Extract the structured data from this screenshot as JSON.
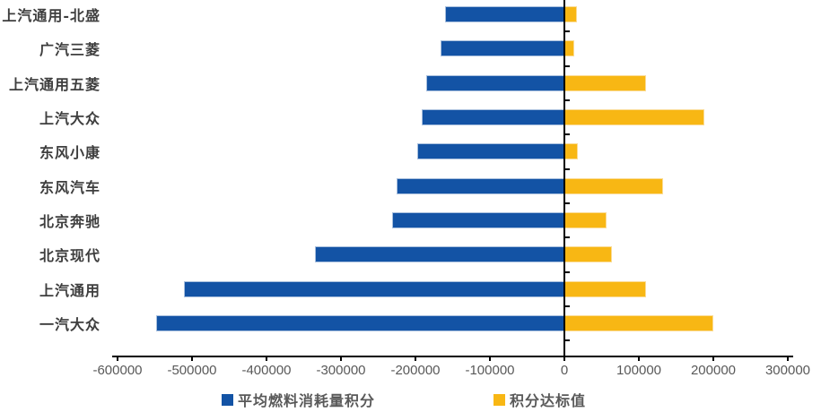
{
  "chart_data": {
    "type": "bar",
    "orientation": "horizontal-diverging",
    "title": "",
    "categories": [
      "上汽通用-北盛",
      "广汽三菱",
      "上汽通用五菱",
      "上汽大众",
      "东风小康",
      "东风汽车",
      "北京奔驰",
      "北京现代",
      "上汽通用",
      "一汽大众"
    ],
    "series": [
      {
        "name": "平均燃料消耗量积分",
        "color": "#1353A5",
        "values": [
          -160000,
          -166000,
          -185000,
          -192000,
          -197000,
          -225000,
          -231000,
          -335000,
          -511000,
          -548000
        ]
      },
      {
        "name": "积分达标值",
        "color": "#F8B714",
        "values": [
          17000,
          13000,
          110000,
          188000,
          18000,
          132000,
          57000,
          64000,
          110000,
          200000
        ]
      }
    ],
    "xlim": [
      -600000,
      300000
    ],
    "x_tick_step": 100000,
    "x_tick_labels": [
      "-600000",
      "-500000",
      "-400000",
      "-300000",
      "-200000",
      "-100000",
      "0",
      "100000",
      "200000",
      "300000"
    ],
    "grid": false,
    "legend_position": "bottom"
  },
  "colors": {
    "axis": "#000000",
    "tick_label": "#595959",
    "category_label": "#3e3e3e",
    "legend_label": "#595959",
    "background": "#ffffff"
  }
}
